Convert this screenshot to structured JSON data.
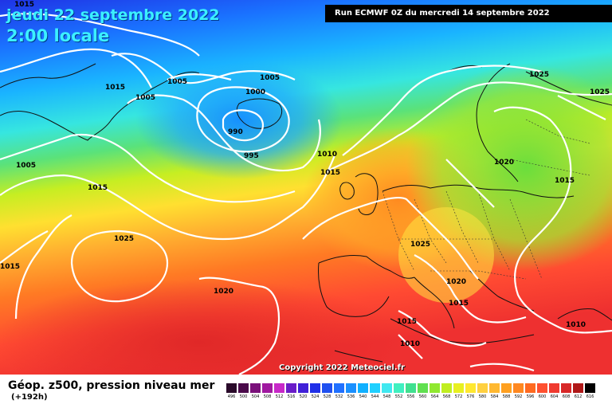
{
  "header": {
    "date": "jeudi 22 septembre 2022",
    "time": "2:00 locale",
    "run": "Run ECMWF 0Z du mercredi 14 septembre 2022"
  },
  "copyright": "Copyright 2022 Meteociel.fr",
  "footer": {
    "product": "Géop. z500, pression niveau mer",
    "lead": "(+192h)"
  },
  "legend": {
    "labels": [
      "496",
      "500",
      "504",
      "508",
      "512",
      "516",
      "520",
      "524",
      "528",
      "532",
      "536",
      "540",
      "544",
      "548",
      "552",
      "556",
      "560",
      "564",
      "568",
      "572",
      "576",
      "580",
      "584",
      "588",
      "592",
      "596",
      "600",
      "604",
      "608",
      "612",
      "616"
    ],
    "colors": [
      "#2a0a2a",
      "#4a0a4a",
      "#7a107a",
      "#a018a0",
      "#c828c8",
      "#6a1cc8",
      "#4020d8",
      "#2030e8",
      "#2050f0",
      "#2070ff",
      "#1a90ff",
      "#10b0ff",
      "#20d0ff",
      "#40e8f0",
      "#40f0c0",
      "#40e090",
      "#60e050",
      "#90e830",
      "#c0ee20",
      "#e8f020",
      "#ffe830",
      "#ffd040",
      "#ffb830",
      "#ffa020",
      "#ff8820",
      "#ff6a20",
      "#ff5030",
      "#f03a30",
      "#d82828",
      "#b01818",
      "#000000"
    ]
  },
  "isobar_labels": [
    "1015",
    "1015",
    "1005",
    "1005",
    "1005",
    "1000",
    "990",
    "995",
    "1005",
    "1015",
    "1010",
    "1015",
    "1025",
    "1025",
    "1015",
    "1020",
    "1020",
    "1025",
    "1020",
    "1015",
    "1015",
    "1010",
    "1010",
    "1025",
    "1015",
    "1020"
  ]
}
